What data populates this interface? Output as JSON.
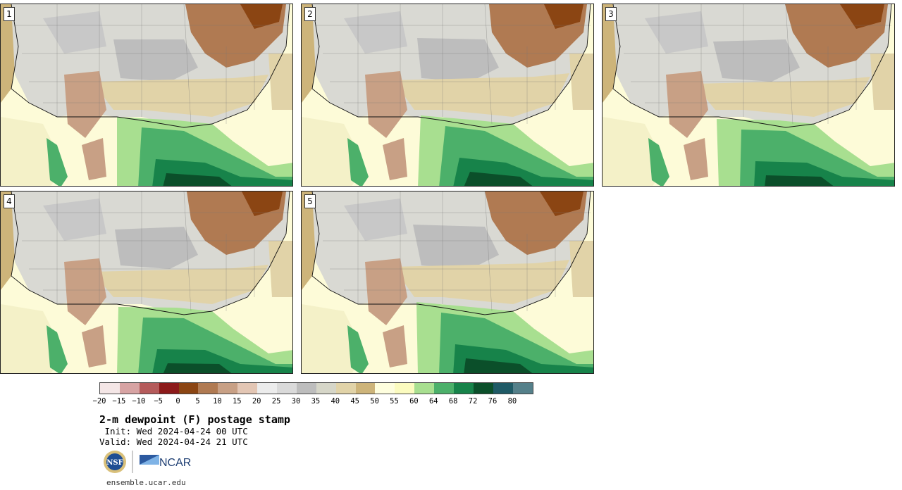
{
  "panels": [
    {
      "label": "1"
    },
    {
      "label": "2"
    },
    {
      "label": "3"
    },
    {
      "label": "4"
    },
    {
      "label": "5"
    }
  ],
  "colorbar": {
    "tick_labels": [
      "−20",
      "−15",
      "−10",
      "−5",
      "0",
      "5",
      "10",
      "15",
      "20",
      "25",
      "30",
      "35",
      "40",
      "45",
      "50",
      "55",
      "60",
      "64",
      "68",
      "72",
      "76",
      "80"
    ],
    "colors": [
      "#f4e6e6",
      "#d7a3a3",
      "#b55b5b",
      "#8c1a1a",
      "#8b4513",
      "#b07a52",
      "#c8a085",
      "#e3c6b4",
      "#ececec",
      "#dadada",
      "#bdbdbd",
      "#d6d6c8",
      "#e1d3a8",
      "#cdb47a",
      "#fefede",
      "#fbfbbf",
      "#a8df90",
      "#4cb06a",
      "#17834a",
      "#0b4f2a",
      "#1f5a66",
      "#55808a"
    ]
  },
  "title": "2-m dewpoint (F) postage stamp",
  "init": " Init: Wed 2024-04-24 00 UTC",
  "valid": "Valid: Wed 2024-04-24 21 UTC",
  "logos": {
    "nsf": "NSF",
    "ncar": "NCAR"
  },
  "url": "ensemble.ucar.edu"
}
